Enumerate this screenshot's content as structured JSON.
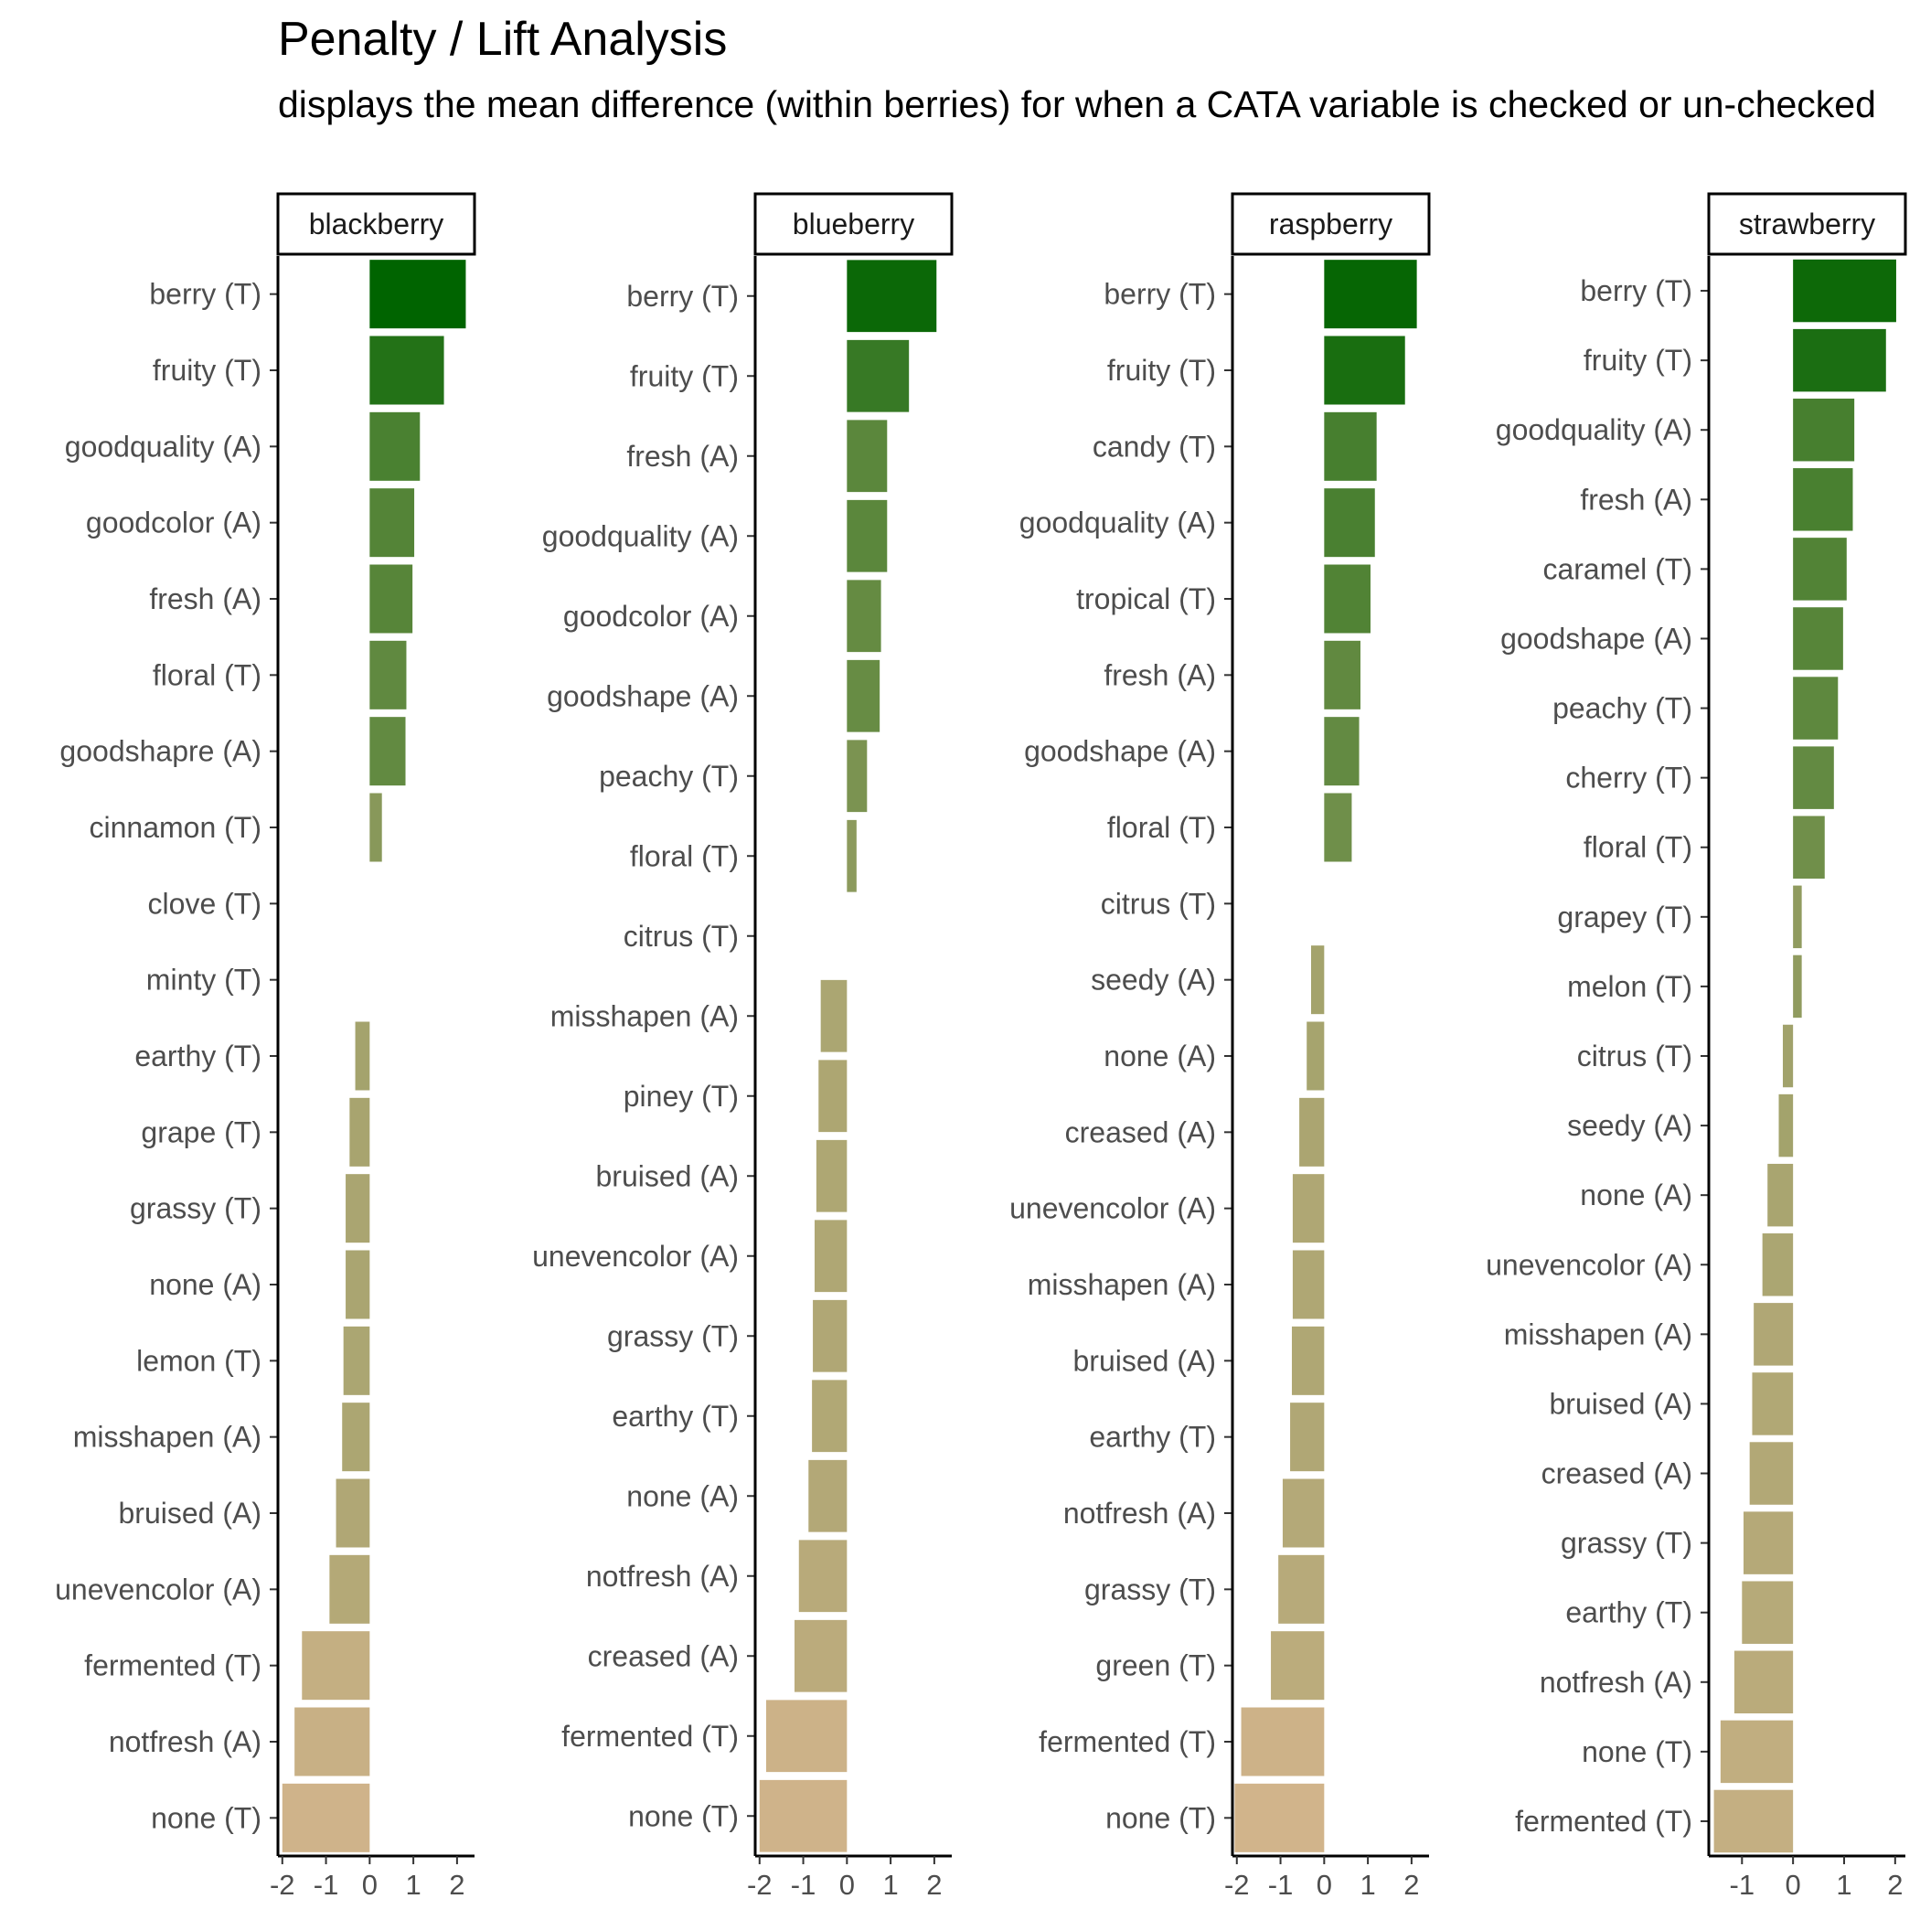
{
  "title": "Penalty / Lift Analysis",
  "subtitle": "displays the mean difference (within berries) for when a CATA variable is checked or un-checked",
  "colors": {
    "high": "#006400",
    "mid": "#9ca067",
    "low": "#d2b48c",
    "axis": "#000000",
    "label": "#4d4d4d"
  },
  "chart_data": [
    {
      "type": "bar",
      "orientation": "horizontal",
      "facet": "blackberry",
      "xlim": [
        -2.1,
        2.4
      ],
      "xticks": [
        -2,
        -1,
        0,
        1,
        2
      ],
      "xtick_labels": [
        "-2",
        "-1",
        "0",
        "1",
        "2"
      ],
      "grid": false,
      "categories": [
        "berry (T)",
        "fruity (T)",
        "goodquality (A)",
        "goodcolor (A)",
        "fresh (A)",
        "floral (T)",
        "goodshapre (A)",
        "cinnamon (T)",
        "clove (T)",
        "minty (T)",
        "earthy (T)",
        "grape (T)",
        "grassy (T)",
        "none (A)",
        "lemon (T)",
        "misshapen (A)",
        "bruised (A)",
        "unevencolor (A)",
        "fermented (T)",
        "notfresh (A)",
        "none (T)"
      ],
      "values": [
        2.2,
        1.7,
        1.15,
        1.02,
        0.98,
        0.84,
        0.82,
        0.28,
        0,
        0,
        -0.33,
        -0.46,
        -0.55,
        -0.55,
        -0.6,
        -0.63,
        -0.77,
        -0.92,
        -1.55,
        -1.72,
        -2.0
      ]
    },
    {
      "type": "bar",
      "orientation": "horizontal",
      "facet": "blueberry",
      "xlim": [
        -2.1,
        2.4
      ],
      "xticks": [
        -2,
        -1,
        0,
        1,
        2
      ],
      "xtick_labels": [
        "-2",
        "-1",
        "0",
        "1",
        "2"
      ],
      "grid": false,
      "categories": [
        "berry (T)",
        "fruity (T)",
        "fresh (A)",
        "goodquality (A)",
        "goodcolor (A)",
        "goodshape (A)",
        "peachy (T)",
        "floral (T)",
        "citrus (T)",
        "misshapen (A)",
        "piney (T)",
        "bruised (A)",
        "unevencolor (A)",
        "grassy (T)",
        "earthy (T)",
        "none (A)",
        "notfresh (A)",
        "creased (A)",
        "fermented (T)",
        "none (T)"
      ],
      "values": [
        2.05,
        1.42,
        0.92,
        0.92,
        0.78,
        0.75,
        0.46,
        0.22,
        0,
        -0.6,
        -0.65,
        -0.7,
        -0.74,
        -0.78,
        -0.8,
        -0.88,
        -1.1,
        -1.2,
        -1.85,
        -2.0
      ]
    },
    {
      "type": "bar",
      "orientation": "horizontal",
      "facet": "raspberry",
      "xlim": [
        -2.1,
        2.4
      ],
      "xticks": [
        -2,
        -1,
        0,
        1,
        2
      ],
      "xtick_labels": [
        "-2",
        "-1",
        "0",
        "1",
        "2"
      ],
      "grid": false,
      "categories": [
        "berry (T)",
        "fruity (T)",
        "candy (T)",
        "goodquality (A)",
        "tropical (T)",
        "fresh (A)",
        "goodshape (A)",
        "floral (T)",
        "citrus (T)",
        "seedy (A)",
        "none (A)",
        "creased (A)",
        "unevencolor (A)",
        "misshapen (A)",
        "bruised (A)",
        "earthy (T)",
        "notfresh (A)",
        "grassy (T)",
        "green (T)",
        "fermented (T)",
        "none (T)"
      ],
      "values": [
        2.12,
        1.85,
        1.2,
        1.16,
        1.06,
        0.83,
        0.8,
        0.63,
        0,
        -0.3,
        -0.4,
        -0.57,
        -0.72,
        -0.72,
        -0.74,
        -0.78,
        -0.95,
        -1.05,
        -1.22,
        -1.9,
        -2.05
      ]
    },
    {
      "type": "bar",
      "orientation": "horizontal",
      "facet": "strawberry",
      "xlim": [
        -1.65,
        2.2
      ],
      "xticks": [
        -1,
        0,
        1,
        2
      ],
      "xtick_labels": [
        "-1",
        "0",
        "1",
        "2"
      ],
      "grid": false,
      "categories": [
        "berry (T)",
        "fruity (T)",
        "goodquality (A)",
        "fresh (A)",
        "caramel (T)",
        "goodshape (A)",
        "peachy (T)",
        "cherry (T)",
        "floral (T)",
        "grapey (T)",
        "melon (T)",
        "citrus (T)",
        "seedy (A)",
        "none (A)",
        "unevencolor (A)",
        "misshapen (A)",
        "bruised (A)",
        "creased (A)",
        "grassy (T)",
        "earthy (T)",
        "notfresh (A)",
        "none (T)",
        "fermented (T)"
      ],
      "values": [
        2.02,
        1.82,
        1.2,
        1.17,
        1.05,
        0.98,
        0.88,
        0.8,
        0.62,
        0.17,
        0.17,
        -0.2,
        -0.28,
        -0.5,
        -0.6,
        -0.77,
        -0.8,
        -0.85,
        -0.97,
        -1.0,
        -1.15,
        -1.42,
        -1.55
      ]
    }
  ]
}
